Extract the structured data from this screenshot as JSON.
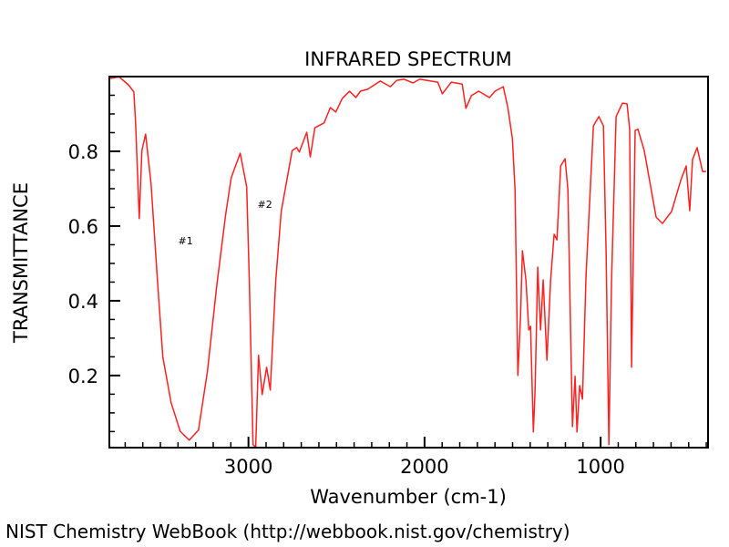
{
  "chart_data": {
    "type": "line",
    "title": "INFRARED SPECTRUM",
    "xlabel": "Wavenumber (cm-1)",
    "ylabel": "TRANSMITTANCE",
    "xlim": [
      3790,
      390
    ],
    "ylim": [
      0.007,
      1.0
    ],
    "x_reversed": true,
    "x_ticks": [
      3000,
      2000,
      1000
    ],
    "x_tick_labels": [
      "3000",
      "2000",
      "1000"
    ],
    "x_minor_step": 100,
    "y_ticks": [
      0.2,
      0.4,
      0.6,
      0.8
    ],
    "y_tick_labels": [
      "0.2",
      "0.4",
      "0.6",
      "0.8"
    ],
    "y_minor_step": 0.05,
    "grid": false,
    "line_color": "#ff2020",
    "annotations": [
      {
        "text": "#1",
        "x": 3357,
        "y": 0.561
      },
      {
        "text": "#2",
        "x": 2907,
        "y": 0.659
      }
    ],
    "series": [
      {
        "x": [
          3786,
          3734,
          3682,
          3651,
          3641,
          3620,
          3605,
          3584,
          3553,
          3517,
          3486,
          3439,
          3388,
          3336,
          3284,
          3233,
          3181,
          3129,
          3098,
          3047,
          3010,
          2995,
          2974,
          2959,
          2943,
          2922,
          2897,
          2876,
          2845,
          2814,
          2752,
          2726,
          2711,
          2669,
          2649,
          2623,
          2571,
          2535,
          2504,
          2468,
          2426,
          2390,
          2364,
          2323,
          2251,
          2194,
          2158,
          2116,
          2065,
          2028,
          1925,
          1899,
          1848,
          1786,
          1765,
          1734,
          1693,
          1631,
          1600,
          1553,
          1527,
          1501,
          1486,
          1470,
          1455,
          1444,
          1424,
          1408,
          1398,
          1382,
          1372,
          1357,
          1341,
          1326,
          1305,
          1284,
          1264,
          1248,
          1227,
          1202,
          1186,
          1160,
          1145,
          1134,
          1119,
          1103,
          1083,
          1041,
          1010,
          984,
          969,
          953,
          938,
          912,
          876,
          850,
          835,
          824,
          804,
          788,
          752,
          685,
          649,
          597,
          545,
          514,
          494,
          478,
          452,
          421,
          401
        ],
        "y": [
          0.995,
          0.999,
          0.978,
          0.959,
          0.876,
          0.62,
          0.802,
          0.846,
          0.712,
          0.454,
          0.249,
          0.127,
          0.051,
          0.027,
          0.054,
          0.21,
          0.437,
          0.632,
          0.729,
          0.795,
          0.705,
          0.454,
          0.015,
          0.008,
          0.254,
          0.149,
          0.222,
          0.161,
          0.454,
          0.639,
          0.802,
          0.81,
          0.798,
          0.851,
          0.785,
          0.863,
          0.876,
          0.917,
          0.905,
          0.941,
          0.961,
          0.944,
          0.961,
          0.966,
          0.988,
          0.973,
          0.99,
          0.993,
          0.983,
          0.993,
          0.985,
          0.954,
          0.985,
          0.98,
          0.915,
          0.949,
          0.961,
          0.944,
          0.961,
          0.973,
          0.917,
          0.834,
          0.698,
          0.2,
          0.356,
          0.534,
          0.454,
          0.322,
          0.332,
          0.049,
          0.161,
          0.49,
          0.322,
          0.456,
          0.241,
          0.454,
          0.578,
          0.563,
          0.761,
          0.78,
          0.698,
          0.063,
          0.198,
          0.049,
          0.173,
          0.137,
          0.468,
          0.868,
          0.893,
          0.868,
          0.534,
          0.015,
          0.454,
          0.893,
          0.929,
          0.927,
          0.859,
          0.222,
          0.856,
          0.859,
          0.802,
          0.624,
          0.607,
          0.639,
          0.722,
          0.761,
          0.641,
          0.778,
          0.81,
          0.746,
          0.746
        ]
      }
    ]
  },
  "footer": "NIST Chemistry WebBook (http://webbook.nist.gov/chemistry)"
}
